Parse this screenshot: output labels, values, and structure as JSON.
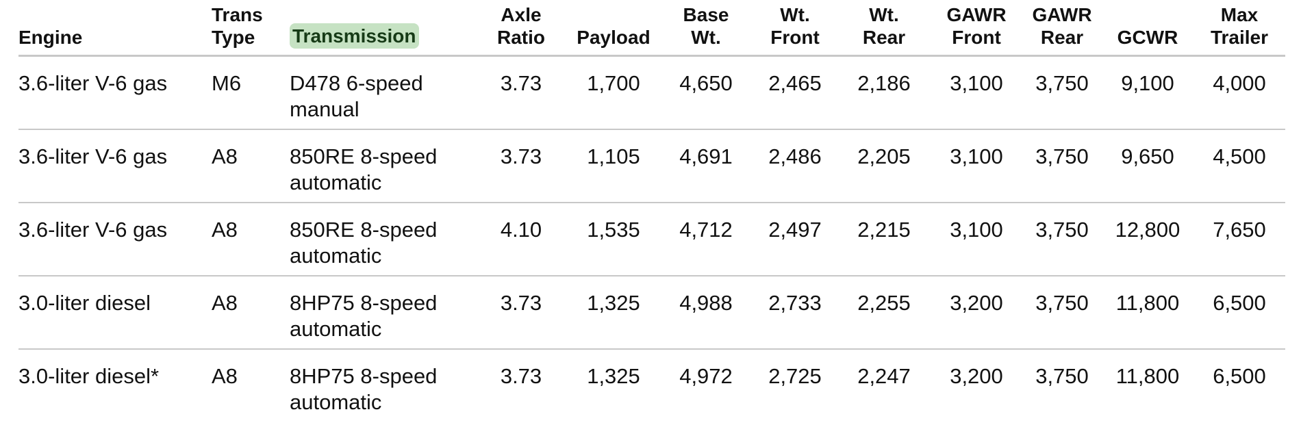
{
  "table": {
    "headers": [
      {
        "key": "engine",
        "lines": [
          "Engine"
        ]
      },
      {
        "key": "trans_type",
        "lines": [
          "Trans",
          "Type"
        ]
      },
      {
        "key": "transmission",
        "lines": [
          "Transmission"
        ],
        "highlight_color": "#c6e2c3"
      },
      {
        "key": "axle_ratio",
        "lines": [
          "Axle",
          "Ratio"
        ]
      },
      {
        "key": "payload",
        "lines": [
          "Payload"
        ]
      },
      {
        "key": "base_wt",
        "lines": [
          "Base",
          "Wt."
        ]
      },
      {
        "key": "wt_front",
        "lines": [
          "Wt.",
          "Front"
        ]
      },
      {
        "key": "wt_rear",
        "lines": [
          "Wt.",
          "Rear"
        ]
      },
      {
        "key": "gawr_front",
        "lines": [
          "GAWR",
          "Front"
        ]
      },
      {
        "key": "gawr_rear",
        "lines": [
          "GAWR",
          "Rear"
        ]
      },
      {
        "key": "gcwr",
        "lines": [
          "GCWR"
        ]
      },
      {
        "key": "max_trailer",
        "lines": [
          "Max",
          "Trailer"
        ]
      }
    ],
    "rows": [
      {
        "engine": "3.6-liter V-6 gas",
        "trans_type": "M6",
        "transmission": "D478 6-speed manual",
        "axle_ratio": "3.73",
        "payload": "1,700",
        "base_wt": "4,650",
        "wt_front": "2,465",
        "wt_rear": "2,186",
        "gawr_front": "3,100",
        "gawr_rear": "3,750",
        "gcwr": "9,100",
        "max_trailer": "4,000"
      },
      {
        "engine": "3.6-liter V-6 gas",
        "trans_type": "A8",
        "transmission": "850RE 8-speed automatic",
        "axle_ratio": "3.73",
        "payload": "1,105",
        "base_wt": "4,691",
        "wt_front": "2,486",
        "wt_rear": "2,205",
        "gawr_front": "3,100",
        "gawr_rear": "3,750",
        "gcwr": "9,650",
        "max_trailer": "4,500"
      },
      {
        "engine": "3.6-liter V-6 gas",
        "trans_type": "A8",
        "transmission": "850RE 8-speed automatic",
        "axle_ratio": "4.10",
        "payload": "1,535",
        "base_wt": "4,712",
        "wt_front": "2,497",
        "wt_rear": "2,215",
        "gawr_front": "3,100",
        "gawr_rear": "3,750",
        "gcwr": "12,800",
        "max_trailer": "7,650"
      },
      {
        "engine": "3.0-liter diesel",
        "trans_type": "A8",
        "transmission": "8HP75 8-speed automatic",
        "axle_ratio": "3.73",
        "payload": "1,325",
        "base_wt": "4,988",
        "wt_front": "2,733",
        "wt_rear": "2,255",
        "gawr_front": "3,200",
        "gawr_rear": "3,750",
        "gcwr": "11,800",
        "max_trailer": "6,500"
      },
      {
        "engine": "3.0-liter diesel*",
        "trans_type": "A8",
        "transmission": "8HP75 8-speed automatic",
        "axle_ratio": "3.73",
        "payload": "1,325",
        "base_wt": "4,972",
        "wt_front": "2,725",
        "wt_rear": "2,247",
        "gawr_front": "3,200",
        "gawr_rear": "3,750",
        "gcwr": "11,800",
        "max_trailer": "6,500"
      }
    ]
  }
}
